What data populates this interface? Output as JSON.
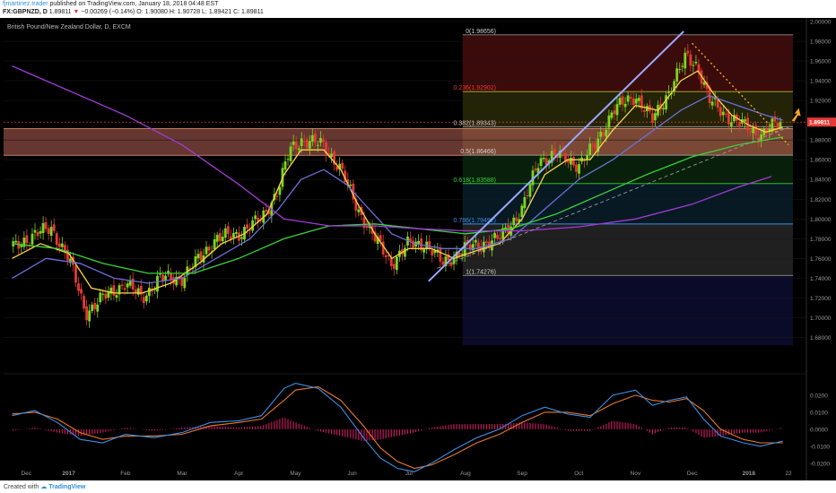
{
  "header": {
    "user": "fjmartinez.trader",
    "published": "published on TradingView.com, January 18, 2018 04:48 EST",
    "symbol": "FX:GBPNZD, D",
    "last": "1.89811",
    "arrow": "▼",
    "change": "−0.00269 (−0.14%)",
    "ohlc": "O: 1.90080 H: 1.90728 L: 1.89421 C: 1.89811"
  },
  "footer": {
    "created": "Created with",
    "brand": "TradingView"
  },
  "colors": {
    "bull": "#7ed321",
    "bear": "#e53935",
    "ma_fast": "#f5d24a",
    "ma_mid": "#6a6fd8",
    "ma_slow": "#3bd33b",
    "ma_long": "#a03ad6",
    "macd": "#3c8ee6",
    "signal": "#e8782c",
    "hist": "#c2185b",
    "trend": "#9aa8ff",
    "downtrend": "#f5a623",
    "price_tag": "#e53935"
  },
  "chart_data": {
    "type": "candlestick",
    "title": "British Pound/New Zealand Dollar, D, EXCM",
    "xlabel": "",
    "ylabel": "",
    "ylim": [
      1.645,
      2.0
    ],
    "x_ticks": [
      {
        "label": "Dec",
        "pos": 0.25
      },
      {
        "label": "2017",
        "pos": 1.0
      },
      {
        "label": "Feb",
        "pos": 2.0
      },
      {
        "label": "Mar",
        "pos": 3.0
      },
      {
        "label": "Apr",
        "pos": 4.0
      },
      {
        "label": "May",
        "pos": 5.0
      },
      {
        "label": "Jun",
        "pos": 6.0
      },
      {
        "label": "Jul",
        "pos": 7.0
      },
      {
        "label": "Aug",
        "pos": 8.0
      },
      {
        "label": "Sep",
        "pos": 9.0
      },
      {
        "label": "Oct",
        "pos": 10.0
      },
      {
        "label": "Nov",
        "pos": 11.0
      },
      {
        "label": "Dec",
        "pos": 12.0
      },
      {
        "label": "2018",
        "pos": 13.0
      },
      {
        "label": "22",
        "pos": 13.7
      }
    ],
    "y_ticks": [
      {
        "label": "2.00000",
        "v": 2.0
      },
      {
        "label": "1.98000",
        "v": 1.98
      },
      {
        "label": "1.96000",
        "v": 1.96
      },
      {
        "label": "1.94000",
        "v": 1.94
      },
      {
        "label": "1.92000",
        "v": 1.92
      },
      {
        "label": "1.88000",
        "v": 1.88
      },
      {
        "label": "1.86000",
        "v": 1.86
      },
      {
        "label": "1.84000",
        "v": 1.84
      },
      {
        "label": "1.82000",
        "v": 1.82
      },
      {
        "label": "1.80000",
        "v": 1.8
      },
      {
        "label": "1.78000",
        "v": 1.78
      },
      {
        "label": "1.76000",
        "v": 1.76
      },
      {
        "label": "1.74000",
        "v": 1.74
      },
      {
        "label": "1.72000",
        "v": 1.72
      },
      {
        "label": "1.70000",
        "v": 1.7
      },
      {
        "label": "1.68000",
        "v": 1.68
      }
    ],
    "last_price": {
      "label": "1.89811",
      "v": 1.89811
    },
    "fib_levels": [
      {
        "label": "0(1.98656)",
        "v": 1.98656
      },
      {
        "label": "0.236(1.92902)",
        "v": 1.92902
      },
      {
        "label": "0.382(1.89343)",
        "v": 1.89343
      },
      {
        "label": "0.5(1.86466)",
        "v": 1.86466
      },
      {
        "label": "0.618(1.83588)",
        "v": 1.83588
      },
      {
        "label": "0.786(1.79492)",
        "v": 1.79492
      },
      {
        "label": "1(1.74276)",
        "v": 1.74276
      }
    ],
    "fib_start": 7.95,
    "resistance_zone": [
      1.8645,
      1.8915
    ],
    "trendline": {
      "x0": 7.35,
      "v0": 1.737,
      "x1": 11.85,
      "v1": 1.99
    },
    "downtrend_line": {
      "x0": 12.0,
      "v0": 1.978,
      "x1": 13.7,
      "v1": 1.875
    },
    "support_dashed": {
      "x0": 7.5,
      "v0": 1.75,
      "x1": 13.7,
      "v1": 1.893
    },
    "price_anchors": [
      [
        0.0,
        1.77
      ],
      [
        0.4,
        1.785
      ],
      [
        0.7,
        1.79
      ],
      [
        1.0,
        1.76
      ],
      [
        1.3,
        1.705
      ],
      [
        1.6,
        1.72
      ],
      [
        2.0,
        1.735
      ],
      [
        2.3,
        1.72
      ],
      [
        2.6,
        1.74
      ],
      [
        3.0,
        1.74
      ],
      [
        3.3,
        1.76
      ],
      [
        3.6,
        1.78
      ],
      [
        4.0,
        1.785
      ],
      [
        4.4,
        1.8
      ],
      [
        4.7,
        1.83
      ],
      [
        4.9,
        1.87
      ],
      [
        5.1,
        1.88
      ],
      [
        5.5,
        1.875
      ],
      [
        5.8,
        1.85
      ],
      [
        6.1,
        1.81
      ],
      [
        6.4,
        1.78
      ],
      [
        6.7,
        1.755
      ],
      [
        7.0,
        1.775
      ],
      [
        7.3,
        1.775
      ],
      [
        7.6,
        1.755
      ],
      [
        8.0,
        1.77
      ],
      [
        8.3,
        1.775
      ],
      [
        8.6,
        1.78
      ],
      [
        9.0,
        1.81
      ],
      [
        9.3,
        1.86
      ],
      [
        9.6,
        1.865
      ],
      [
        10.0,
        1.855
      ],
      [
        10.3,
        1.875
      ],
      [
        10.6,
        1.91
      ],
      [
        11.0,
        1.925
      ],
      [
        11.3,
        1.9
      ],
      [
        11.6,
        1.93
      ],
      [
        11.9,
        1.965
      ],
      [
        12.1,
        1.955
      ],
      [
        12.3,
        1.92
      ],
      [
        12.6,
        1.905
      ],
      [
        12.9,
        1.895
      ],
      [
        13.2,
        1.885
      ],
      [
        13.45,
        1.895
      ],
      [
        13.6,
        1.898
      ]
    ],
    "series": [
      {
        "name": "",
        "type": "ma",
        "color": "#f5d24a",
        "points": [
          [
            0.0,
            1.76
          ],
          [
            0.5,
            1.775
          ],
          [
            1.0,
            1.765
          ],
          [
            1.4,
            1.73
          ],
          [
            1.8,
            1.725
          ],
          [
            2.3,
            1.725
          ],
          [
            2.8,
            1.735
          ],
          [
            3.3,
            1.755
          ],
          [
            3.7,
            1.775
          ],
          [
            4.1,
            1.785
          ],
          [
            4.5,
            1.805
          ],
          [
            4.8,
            1.845
          ],
          [
            5.1,
            1.87
          ],
          [
            5.5,
            1.87
          ],
          [
            5.8,
            1.85
          ],
          [
            6.1,
            1.815
          ],
          [
            6.4,
            1.785
          ],
          [
            6.7,
            1.76
          ],
          [
            7.0,
            1.77
          ],
          [
            7.4,
            1.77
          ],
          [
            7.8,
            1.76
          ],
          [
            8.2,
            1.768
          ],
          [
            8.6,
            1.775
          ],
          [
            9.0,
            1.8
          ],
          [
            9.4,
            1.845
          ],
          [
            9.8,
            1.86
          ],
          [
            10.2,
            1.86
          ],
          [
            10.6,
            1.89
          ],
          [
            11.0,
            1.915
          ],
          [
            11.4,
            1.91
          ],
          [
            11.8,
            1.94
          ],
          [
            12.1,
            1.95
          ],
          [
            12.4,
            1.925
          ],
          [
            12.7,
            1.905
          ],
          [
            13.0,
            1.895
          ],
          [
            13.3,
            1.888
          ],
          [
            13.6,
            1.893
          ]
        ]
      },
      {
        "name": "",
        "type": "ma",
        "color": "#6a6fd8",
        "points": [
          [
            0.0,
            1.74
          ],
          [
            0.6,
            1.76
          ],
          [
            1.2,
            1.755
          ],
          [
            1.8,
            1.74
          ],
          [
            2.4,
            1.735
          ],
          [
            3.0,
            1.74
          ],
          [
            3.6,
            1.76
          ],
          [
            4.2,
            1.78
          ],
          [
            4.7,
            1.81
          ],
          [
            5.1,
            1.84
          ],
          [
            5.5,
            1.85
          ],
          [
            5.9,
            1.835
          ],
          [
            6.3,
            1.81
          ],
          [
            6.7,
            1.785
          ],
          [
            7.1,
            1.775
          ],
          [
            7.6,
            1.77
          ],
          [
            8.2,
            1.77
          ],
          [
            8.8,
            1.78
          ],
          [
            9.4,
            1.81
          ],
          [
            10.0,
            1.84
          ],
          [
            10.6,
            1.86
          ],
          [
            11.2,
            1.885
          ],
          [
            11.8,
            1.91
          ],
          [
            12.3,
            1.925
          ],
          [
            12.8,
            1.915
          ],
          [
            13.3,
            1.905
          ],
          [
            13.6,
            1.9
          ]
        ]
      },
      {
        "name": "",
        "type": "ma",
        "color": "#3bd33b",
        "points": [
          [
            0.0,
            1.775
          ],
          [
            0.8,
            1.77
          ],
          [
            1.6,
            1.755
          ],
          [
            2.4,
            1.745
          ],
          [
            3.2,
            1.745
          ],
          [
            4.0,
            1.76
          ],
          [
            4.8,
            1.78
          ],
          [
            5.6,
            1.793
          ],
          [
            6.4,
            1.795
          ],
          [
            7.2,
            1.79
          ],
          [
            8.0,
            1.785
          ],
          [
            8.8,
            1.79
          ],
          [
            9.6,
            1.805
          ],
          [
            10.4,
            1.825
          ],
          [
            11.2,
            1.845
          ],
          [
            12.0,
            1.863
          ],
          [
            12.8,
            1.875
          ],
          [
            13.6,
            1.883
          ]
        ]
      },
      {
        "name": "",
        "type": "ma",
        "color": "#a03ad6",
        "points": [
          [
            0.0,
            1.955
          ],
          [
            1.0,
            1.93
          ],
          [
            2.0,
            1.905
          ],
          [
            3.0,
            1.875
          ],
          [
            4.0,
            1.835
          ],
          [
            4.8,
            1.8
          ],
          [
            5.6,
            1.793
          ],
          [
            6.4,
            1.793
          ],
          [
            7.2,
            1.79
          ],
          [
            8.0,
            1.788
          ],
          [
            9.0,
            1.788
          ],
          [
            10.0,
            1.792
          ],
          [
            11.0,
            1.8
          ],
          [
            12.0,
            1.815
          ],
          [
            12.8,
            1.832
          ],
          [
            13.4,
            1.843
          ]
        ]
      }
    ],
    "macd": {
      "ylim": [
        -0.028,
        0.031
      ],
      "y_ticks": [
        {
          "label": "0.0200",
          "v": 0.02
        },
        {
          "label": "0.0100",
          "v": 0.01
        },
        {
          "label": "0.0000",
          "v": 0.0
        },
        {
          "label": "-0.0100",
          "v": -0.01
        },
        {
          "label": "-0.0200",
          "v": -0.02
        }
      ],
      "macd_line": [
        [
          0.0,
          0.008
        ],
        [
          0.4,
          0.011
        ],
        [
          0.8,
          0.004
        ],
        [
          1.2,
          -0.006
        ],
        [
          1.6,
          -0.008
        ],
        [
          2.0,
          -0.003
        ],
        [
          2.5,
          -0.005
        ],
        [
          3.0,
          -0.002
        ],
        [
          3.5,
          0.004
        ],
        [
          4.0,
          0.005
        ],
        [
          4.4,
          0.008
        ],
        [
          4.8,
          0.024
        ],
        [
          5.0,
          0.027
        ],
        [
          5.4,
          0.024
        ],
        [
          5.8,
          0.013
        ],
        [
          6.2,
          -0.005
        ],
        [
          6.5,
          -0.017
        ],
        [
          6.8,
          -0.023
        ],
        [
          7.1,
          -0.025
        ],
        [
          7.4,
          -0.02
        ],
        [
          7.8,
          -0.012
        ],
        [
          8.2,
          -0.005
        ],
        [
          8.6,
          0.0
        ],
        [
          9.0,
          0.008
        ],
        [
          9.4,
          0.013
        ],
        [
          9.8,
          0.009
        ],
        [
          10.2,
          0.007
        ],
        [
          10.6,
          0.02
        ],
        [
          11.0,
          0.023
        ],
        [
          11.3,
          0.014
        ],
        [
          11.6,
          0.017
        ],
        [
          11.9,
          0.019
        ],
        [
          12.2,
          0.006
        ],
        [
          12.5,
          -0.004
        ],
        [
          12.9,
          -0.008
        ],
        [
          13.2,
          -0.01
        ],
        [
          13.6,
          -0.007
        ]
      ],
      "signal_line": [
        [
          0.0,
          0.009
        ],
        [
          0.4,
          0.01
        ],
        [
          0.8,
          0.006
        ],
        [
          1.2,
          -0.002
        ],
        [
          1.6,
          -0.006
        ],
        [
          2.0,
          -0.004
        ],
        [
          2.5,
          -0.004
        ],
        [
          3.0,
          -0.003
        ],
        [
          3.5,
          0.002
        ],
        [
          4.0,
          0.004
        ],
        [
          4.4,
          0.006
        ],
        [
          4.8,
          0.017
        ],
        [
          5.0,
          0.023
        ],
        [
          5.4,
          0.025
        ],
        [
          5.8,
          0.017
        ],
        [
          6.2,
          0.002
        ],
        [
          6.5,
          -0.011
        ],
        [
          6.8,
          -0.019
        ],
        [
          7.1,
          -0.023
        ],
        [
          7.4,
          -0.021
        ],
        [
          7.8,
          -0.015
        ],
        [
          8.2,
          -0.008
        ],
        [
          8.6,
          -0.003
        ],
        [
          9.0,
          0.004
        ],
        [
          9.4,
          0.01
        ],
        [
          9.8,
          0.01
        ],
        [
          10.2,
          0.008
        ],
        [
          10.6,
          0.015
        ],
        [
          11.0,
          0.02
        ],
        [
          11.3,
          0.017
        ],
        [
          11.6,
          0.016
        ],
        [
          11.9,
          0.018
        ],
        [
          12.2,
          0.011
        ],
        [
          12.5,
          0.0
        ],
        [
          12.9,
          -0.006
        ],
        [
          13.2,
          -0.008
        ],
        [
          13.6,
          -0.008
        ]
      ]
    }
  }
}
